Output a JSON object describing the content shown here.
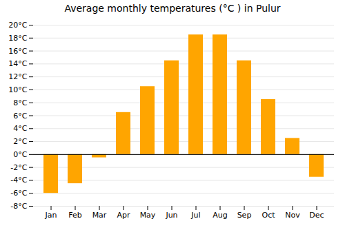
{
  "chart_data": {
    "type": "bar",
    "title": "Average monthly temperatures (°C ) in Pulur",
    "categories": [
      "Jan",
      "Feb",
      "Mar",
      "Apr",
      "May",
      "Jun",
      "Jul",
      "Aug",
      "Sep",
      "Oct",
      "Nov",
      "Dec"
    ],
    "values": [
      -6,
      -4.5,
      -0.5,
      6.5,
      10.5,
      14.5,
      18.5,
      18.5,
      14.5,
      8.5,
      2.5,
      -3.5
    ],
    "color": "#FFA500",
    "ylim": [
      -8,
      20
    ],
    "yticks": [
      {
        "value": -8,
        "label": "-8°C"
      },
      {
        "value": -6,
        "label": "-6°C"
      },
      {
        "value": -4,
        "label": "-4°C"
      },
      {
        "value": -2,
        "label": "-2°C"
      },
      {
        "value": 0,
        "label": "0°C"
      },
      {
        "value": 2,
        "label": "2°C"
      },
      {
        "value": 4,
        "label": "4°C"
      },
      {
        "value": 6,
        "label": "6°C"
      },
      {
        "value": 8,
        "label": "8°C"
      },
      {
        "value": 10,
        "label": "10°C"
      },
      {
        "value": 12,
        "label": "12°C"
      },
      {
        "value": 14,
        "label": "14°C"
      },
      {
        "value": 16,
        "label": "16°C"
      },
      {
        "value": 18,
        "label": "18°C"
      },
      {
        "value": 20,
        "label": "20°C"
      }
    ],
    "grid": true
  }
}
